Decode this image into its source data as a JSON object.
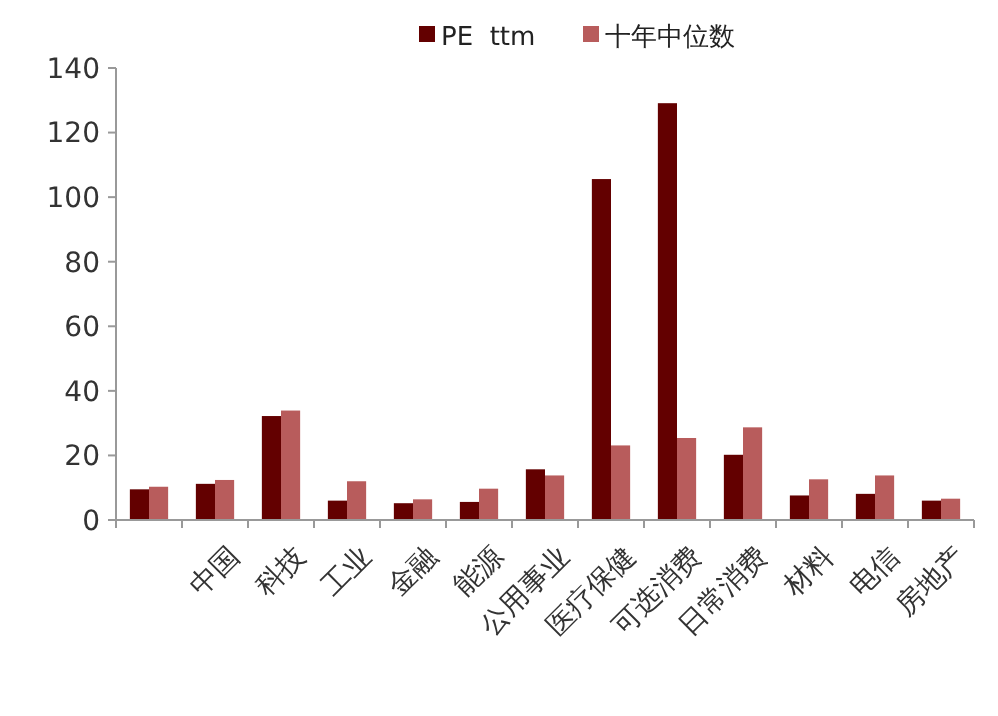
{
  "chart_data": {
    "type": "bar",
    "categories": [
      null,
      "中国",
      "科技",
      "工业",
      "金融",
      "能源",
      "公用事业",
      "医疗保健",
      "可选消费",
      "日常消费",
      "材料",
      "电信",
      "房地产"
    ],
    "series": [
      {
        "name": "PE  ttm",
        "color": "#630000",
        "values": [
          9.5,
          11.2,
          32.2,
          6,
          5.2,
          5.6,
          15.7,
          105.6,
          129.1,
          20.2,
          7.6,
          8.1,
          6
        ]
      },
      {
        "name": "十年中位数",
        "color": "#b85c5c",
        "values": [
          10.3,
          12.4,
          33.9,
          12,
          6.4,
          9.7,
          13.8,
          23.1,
          25.4,
          28.7,
          12.6,
          13.8,
          6.6
        ]
      }
    ],
    "ylim": [
      0,
      140
    ],
    "yticks": [
      0,
      20,
      40,
      60,
      80,
      100,
      120,
      140
    ],
    "legend": "top",
    "grid": false
  }
}
